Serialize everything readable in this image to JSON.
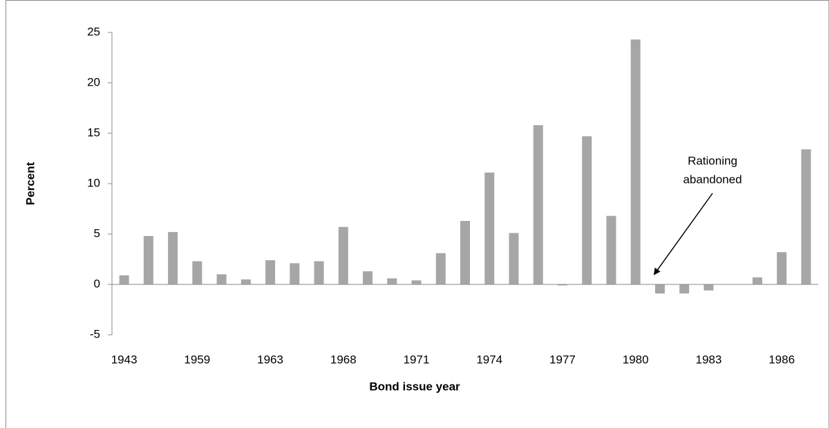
{
  "chart_data": {
    "type": "bar",
    "x_label": "Bond issue year",
    "y_label": "Percent",
    "categories": [
      "1943",
      null,
      null,
      "1959",
      null,
      null,
      "1963",
      null,
      null,
      "1968",
      null,
      null,
      "1971",
      null,
      null,
      "1974",
      null,
      null,
      "1977",
      null,
      null,
      "1980",
      null,
      null,
      "1983",
      null,
      null,
      "1986",
      null
    ],
    "values": [
      0.9,
      4.8,
      5.2,
      2.3,
      1.0,
      0.5,
      2.4,
      2.1,
      2.3,
      5.7,
      1.3,
      0.6,
      0.4,
      3.1,
      6.3,
      11.1,
      5.1,
      15.8,
      -0.1,
      14.7,
      6.8,
      24.3,
      -0.9,
      -0.9,
      -0.6,
      0,
      0.7,
      3.2,
      13.4
    ],
    "color": "#a6a6a6",
    "ylim": [
      -5,
      25
    ],
    "yticks": [
      -5,
      0,
      5,
      10,
      15,
      20,
      25
    ],
    "annotation": [
      "Rationing",
      "abandoned"
    ]
  }
}
